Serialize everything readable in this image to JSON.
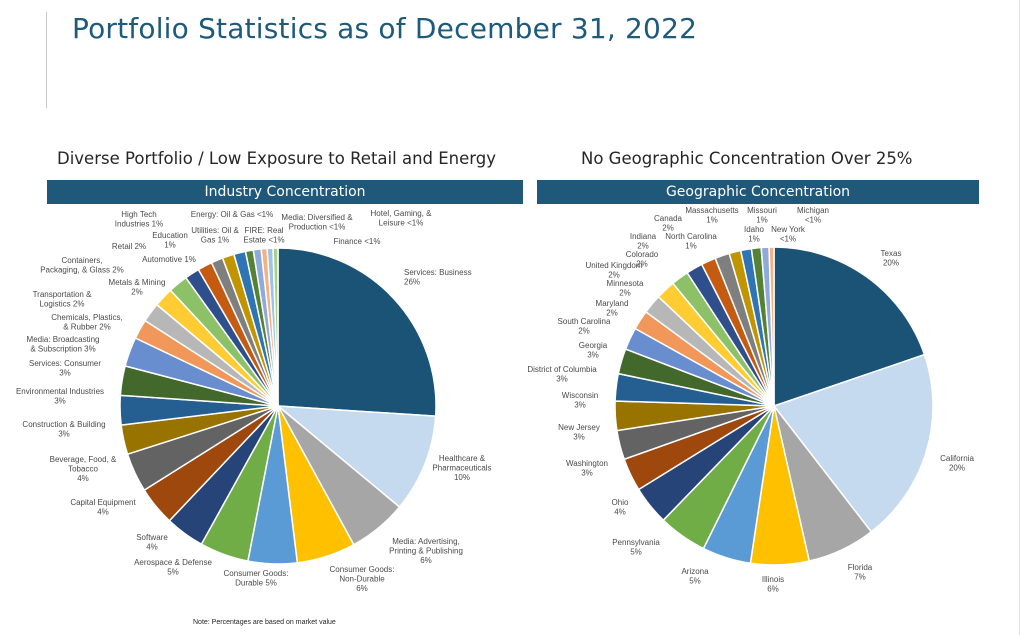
{
  "page": {
    "title": "Portfolio Statistics as of December 31, 2022",
    "note": "Note: Percentages are based on market value"
  },
  "colors": {
    "title": "#1d5a7b",
    "header_bar": "#1f5878",
    "palette": [
      "#1a5376",
      "#c5d9ef",
      "#a6a6a6",
      "#ffc000",
      "#5b9bd5",
      "#70ad47",
      "#264478",
      "#9e480e",
      "#636363",
      "#997300",
      "#255e91",
      "#43682b",
      "#698ed0",
      "#f1975a",
      "#b7b7b7",
      "#ffcd33",
      "#8cc168",
      "#2e4e8c",
      "#c55a11",
      "#7f7f7f",
      "#c19500",
      "#2f75b5",
      "#548235",
      "#8eaadb",
      "#f4b183",
      "#9dc3e6",
      "#a9d18e"
    ]
  },
  "chart_data": [
    {
      "type": "pie",
      "title": "Diverse Portfolio / Low Exposure to Retail and Energy",
      "header": "Industry Concentration",
      "slices": [
        {
          "label": "Services: Business",
          "pct": "26%",
          "value": 26
        },
        {
          "label": "Healthcare & Pharmaceuticals",
          "pct": "10%",
          "value": 10
        },
        {
          "label": "Media: Advertising, Printing & Publishing",
          "pct": "6%",
          "value": 6
        },
        {
          "label": "Consumer Goods: Non-Durable",
          "pct": "6%",
          "value": 6
        },
        {
          "label": "Consumer Goods: Durable",
          "pct": "5%",
          "value": 5
        },
        {
          "label": "Aerospace & Defense",
          "pct": "5%",
          "value": 5
        },
        {
          "label": "Software",
          "pct": "4%",
          "value": 4
        },
        {
          "label": "Capital Equipment",
          "pct": "4%",
          "value": 4
        },
        {
          "label": "Beverage, Food, & Tobacco",
          "pct": "4%",
          "value": 4
        },
        {
          "label": "Construction & Building",
          "pct": "3%",
          "value": 3
        },
        {
          "label": "Environmental Industries",
          "pct": "3%",
          "value": 3
        },
        {
          "label": "Services: Consumer",
          "pct": "3%",
          "value": 3
        },
        {
          "label": "Media: Broadcasting & Subscription",
          "pct": "3%",
          "value": 3
        },
        {
          "label": "Chemicals, Plastics, & Rubber",
          "pct": "2%",
          "value": 2
        },
        {
          "label": "Transportation & Logistics",
          "pct": "2%",
          "value": 2
        },
        {
          "label": "Metals & Mining",
          "pct": "2%",
          "value": 2
        },
        {
          "label": "Containers, Packaging, & Glass",
          "pct": "2%",
          "value": 2
        },
        {
          "label": "Automotive",
          "pct": "1%",
          "value": 1.5
        },
        {
          "label": "Retail",
          "pct": "2%",
          "value": 1.5
        },
        {
          "label": "Education",
          "pct": "1%",
          "value": 1.2
        },
        {
          "label": "High Tech Industries",
          "pct": "1%",
          "value": 1.2
        },
        {
          "label": "Utilities: Oil & Gas",
          "pct": "1%",
          "value": 1.2
        },
        {
          "label": "Energy: Oil & Gas",
          "pct": "<1%",
          "value": 0.8
        },
        {
          "label": "FIRE: Real Estate",
          "pct": "<1%",
          "value": 0.8
        },
        {
          "label": "Media: Diversified & Production",
          "pct": "<1%",
          "value": 0.6
        },
        {
          "label": "Hotel, Gaming, & Leisure",
          "pct": "<1%",
          "value": 0.6
        },
        {
          "label": "Finance",
          "pct": "<1%",
          "value": 0.5
        }
      ]
    },
    {
      "type": "pie",
      "title": "No Geographic Concentration Over 25%",
      "header": "Geographic Concentration",
      "slices": [
        {
          "label": "Texas",
          "pct": "20%",
          "value": 20
        },
        {
          "label": "California",
          "pct": "20%",
          "value": 20
        },
        {
          "label": "Florida",
          "pct": "7%",
          "value": 7
        },
        {
          "label": "Illinois",
          "pct": "6%",
          "value": 6
        },
        {
          "label": "Arizona",
          "pct": "5%",
          "value": 5
        },
        {
          "label": "Pennsylvania",
          "pct": "5%",
          "value": 5
        },
        {
          "label": "Ohio",
          "pct": "4%",
          "value": 4
        },
        {
          "label": "Washington",
          "pct": "3%",
          "value": 3.4
        },
        {
          "label": "New Jersey",
          "pct": "3%",
          "value": 3
        },
        {
          "label": "Wisconsin",
          "pct": "3%",
          "value": 3
        },
        {
          "label": "District of Columbia",
          "pct": "3%",
          "value": 2.8
        },
        {
          "label": "Georgia",
          "pct": "3%",
          "value": 2.6
        },
        {
          "label": "South Carolina",
          "pct": "2%",
          "value": 2.3
        },
        {
          "label": "Maryland",
          "pct": "2%",
          "value": 2
        },
        {
          "label": "Minnesota",
          "pct": "2%",
          "value": 2
        },
        {
          "label": "United Kingdom",
          "pct": "2%",
          "value": 2
        },
        {
          "label": "Colorado",
          "pct": "2%",
          "value": 1.8
        },
        {
          "label": "Indiana",
          "pct": "2%",
          "value": 1.7
        },
        {
          "label": "North Carolina",
          "pct": "1%",
          "value": 1.5
        },
        {
          "label": "Canada",
          "pct": "2%",
          "value": 1.5
        },
        {
          "label": "Massachusetts",
          "pct": "1%",
          "value": 1.2
        },
        {
          "label": "Idaho",
          "pct": "1%",
          "value": 1.1
        },
        {
          "label": "Missouri",
          "pct": "1%",
          "value": 1
        },
        {
          "label": "New York",
          "pct": "<1%",
          "value": 0.8
        },
        {
          "label": "Michigan",
          "pct": "<1%",
          "value": 0.5
        }
      ]
    }
  ]
}
